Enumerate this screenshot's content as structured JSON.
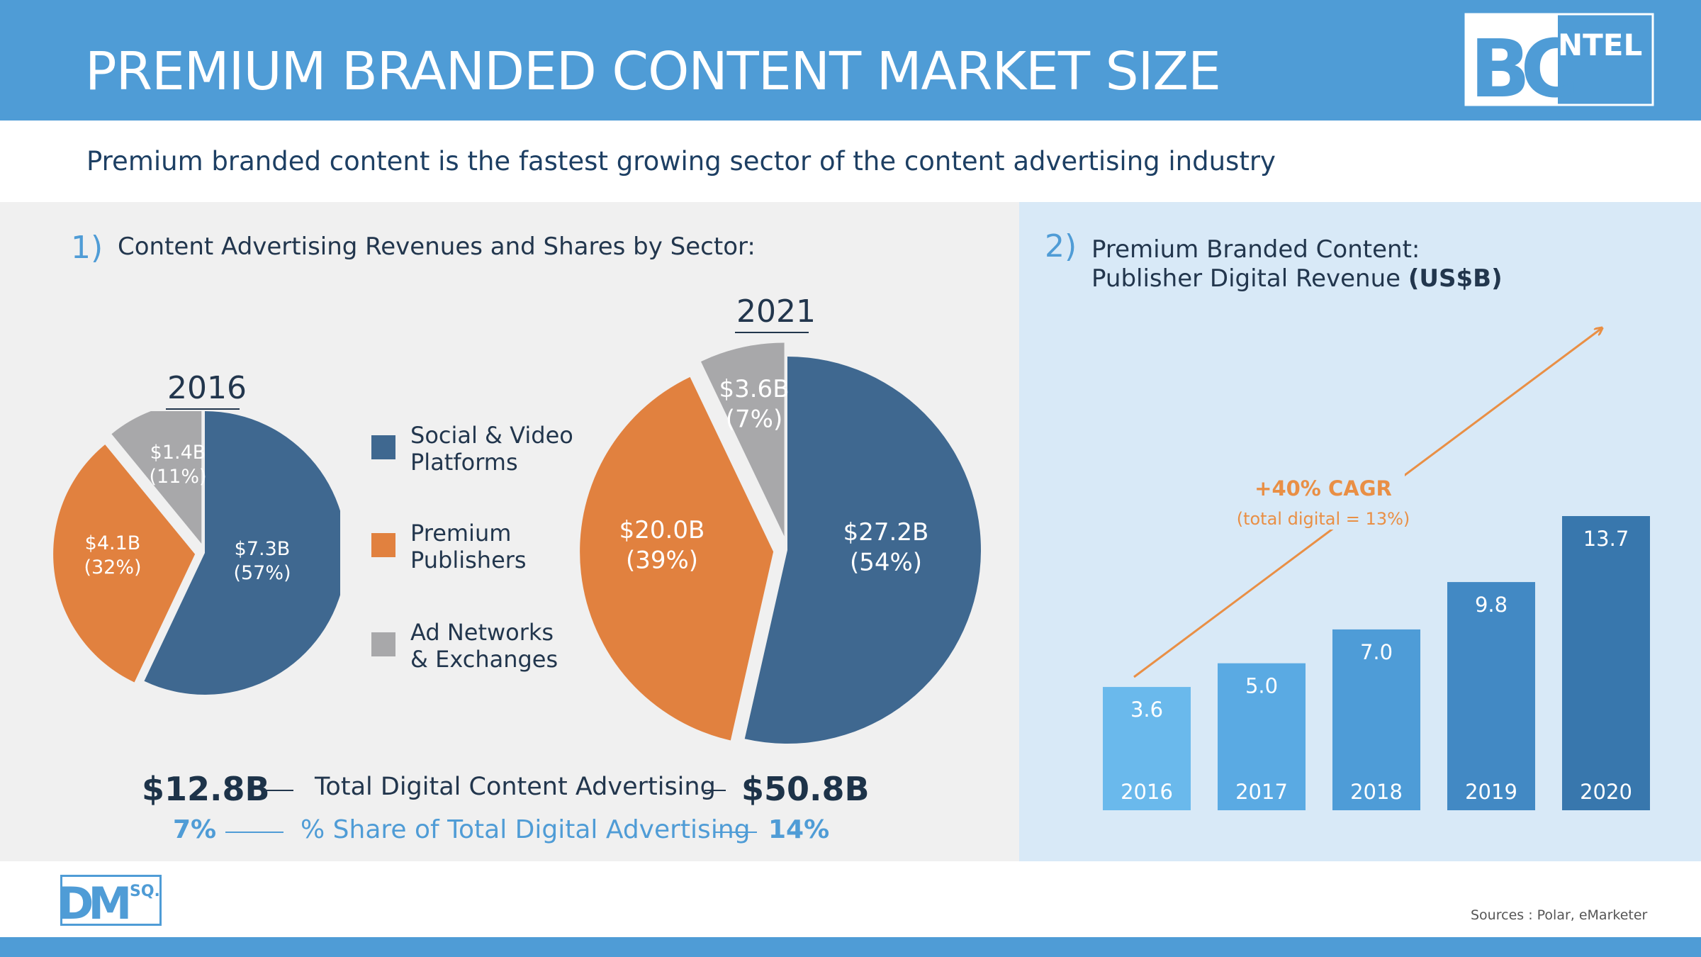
{
  "header": {
    "title": "PREMIUM BRANDED CONTENT MARKET SIZE"
  },
  "logo_top": {
    "text_main": "BC",
    "text_small": "NTEL"
  },
  "subtitle": "Premium branded content is the fastest growing sector of the content advertising industry",
  "section1": {
    "number": "1)",
    "title": "Content Advertising Revenues and Shares by Sector:"
  },
  "section2": {
    "number": "2)",
    "title_line1": "Premium Branded Content:",
    "title_line2": "Publisher Digital Revenue",
    "unit": "(US$B)"
  },
  "legend": [
    {
      "line1": "Social & Video",
      "line2": "Platforms",
      "color": "#3f6890"
    },
    {
      "line1": "Premium",
      "line2": "Publishers",
      "color": "#e1813f"
    },
    {
      "line1": "Ad Networks",
      "line2": "& Exchanges",
      "color": "#a8a8aa"
    }
  ],
  "totals": {
    "left_total": "$12.8B",
    "right_total": "$50.8B",
    "middle_label": "Total Digital Content Advertising",
    "left_share": "7%",
    "right_share": "14%",
    "share_label": "% Share of Total Digital Advertising"
  },
  "cagr": {
    "label": "+40% CAGR",
    "note": "(total digital = 13%)",
    "color": "#e98f45"
  },
  "sources": "Sources : Polar, eMarketer",
  "logo_bottom": {
    "text_main": "DM",
    "text_small": "SQ."
  },
  "chart_data": [
    {
      "type": "pie",
      "title": "2016",
      "slices": [
        {
          "name": "Social & Video Platforms",
          "value": 7.3,
          "value_label": "$7.3B",
          "share_label": "(57%)",
          "percent": 57,
          "color": "#3f6890"
        },
        {
          "name": "Premium Publishers",
          "value": 4.1,
          "value_label": "$4.1B",
          "share_label": "(32%)",
          "percent": 32,
          "color": "#e1813f"
        },
        {
          "name": "Ad Networks & Exchanges",
          "value": 1.4,
          "value_label": "$1.4B",
          "share_label": "(11%)",
          "percent": 11,
          "color": "#a8a8aa"
        }
      ]
    },
    {
      "type": "pie",
      "title": "2021",
      "slices": [
        {
          "name": "Social & Video Platforms",
          "value": 27.2,
          "value_label": "$27.2B",
          "share_label": "(54%)",
          "percent": 54,
          "color": "#3f6890"
        },
        {
          "name": "Premium Publishers",
          "value": 20.0,
          "value_label": "$20.0B",
          "share_label": "(39%)",
          "percent": 39,
          "color": "#e1813f"
        },
        {
          "name": "Ad Networks & Exchanges",
          "value": 3.6,
          "value_label": "$3.6B",
          "share_label": "(7%)",
          "percent": 7,
          "color": "#a8a8aa"
        }
      ]
    },
    {
      "type": "bar",
      "categories": [
        "2016",
        "2017",
        "2018",
        "2019",
        "2020"
      ],
      "values": [
        3.6,
        5.0,
        7.0,
        9.8,
        13.7
      ],
      "value_labels": [
        "3.6",
        "5.0",
        "7.0",
        "9.8",
        "13.7"
      ],
      "colors": [
        "#6ab9ec",
        "#5aaae3",
        "#4e9cd7",
        "#4289c4",
        "#3877ad"
      ],
      "ylim": [
        0,
        13.7
      ]
    }
  ]
}
